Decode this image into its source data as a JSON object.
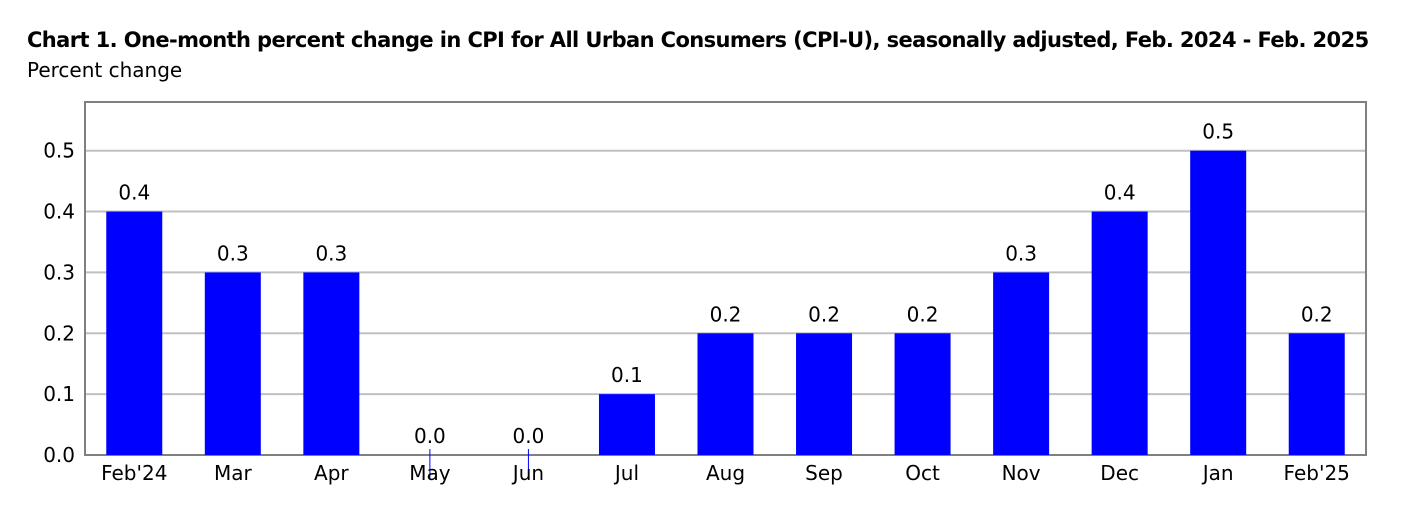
{
  "chart_data": {
    "type": "bar",
    "title": "Chart 1. One-month percent change in CPI for All Urban Consumers (CPI-U), seasonally adjusted, Feb. 2024 - Feb. 2025",
    "subtitle": "Percent change",
    "xlabel": "",
    "ylabel": "",
    "categories": [
      "Feb'24",
      "Mar",
      "Apr",
      "May",
      "Jun",
      "Jul",
      "Aug",
      "Sep",
      "Oct",
      "Nov",
      "Dec",
      "Jan",
      "Feb'25"
    ],
    "values": [
      0.4,
      0.3,
      0.3,
      0.0,
      0.0,
      0.1,
      0.2,
      0.2,
      0.2,
      0.3,
      0.4,
      0.5,
      0.2
    ],
    "data_labels": [
      "0.4",
      "0.3",
      "0.3",
      "0.0",
      "0.0",
      "0.1",
      "0.2",
      "0.2",
      "0.2",
      "0.3",
      "0.4",
      "0.5",
      "0.2"
    ],
    "yticks": [
      0.0,
      0.1,
      0.2,
      0.3,
      0.4,
      0.5
    ],
    "ytick_labels": [
      "0.0",
      "0.1",
      "0.2",
      "0.3",
      "0.4",
      "0.5"
    ],
    "ylim": [
      0,
      0.58
    ],
    "grid": true,
    "legend": "none",
    "bar_color": "#0000FF",
    "grid_color": "#C0C0C0",
    "frame_color": "#808080"
  }
}
